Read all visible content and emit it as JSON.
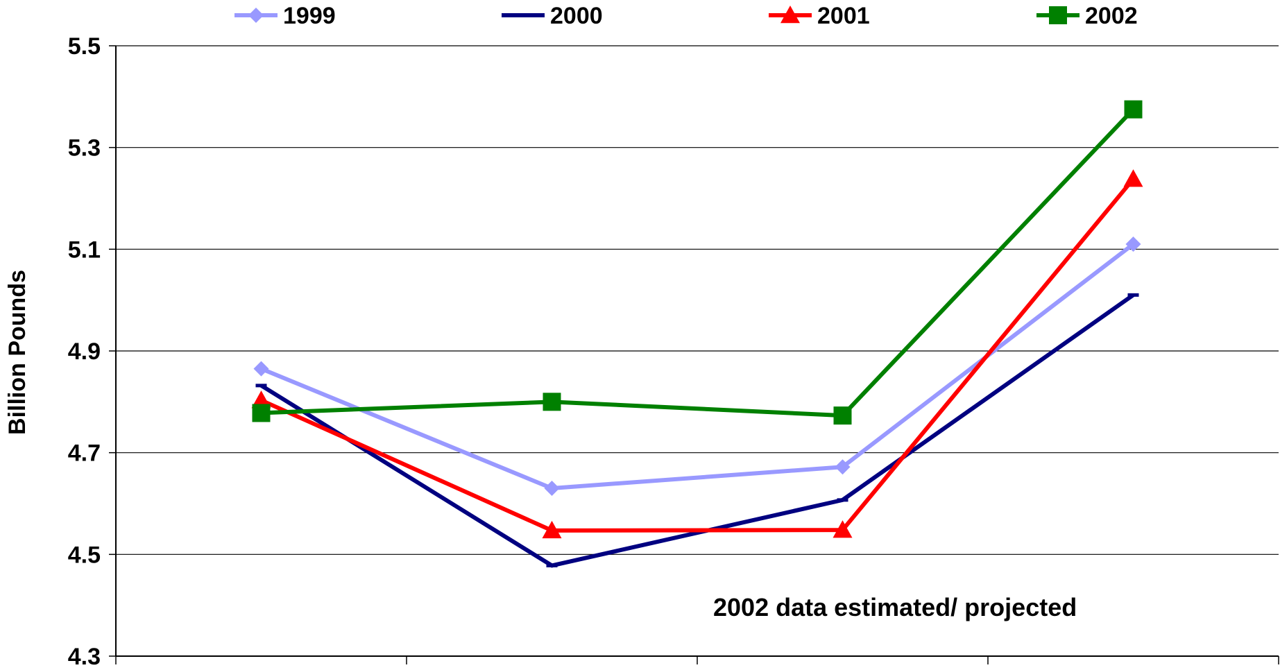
{
  "chart_data": {
    "type": "line",
    "title": "",
    "xlabel": "",
    "ylabel": "Billion Pounds",
    "categories": [
      "",
      "",
      "",
      ""
    ],
    "ylim": [
      4.3,
      5.5
    ],
    "yticks": [
      "4.3",
      "4.5",
      "4.7",
      "4.9",
      "5.1",
      "5.3",
      "5.5"
    ],
    "grid": true,
    "legend_position": "top",
    "annotation": "2002 data estimated/ projected",
    "series": [
      {
        "name": "1999",
        "values": [
          4.865,
          4.63,
          4.672,
          5.11
        ],
        "color": "#9999ff",
        "marker": "diamond"
      },
      {
        "name": "2000",
        "values": [
          4.832,
          4.478,
          4.607,
          5.01
        ],
        "color": "#000080",
        "marker": "dash"
      },
      {
        "name": "2001",
        "values": [
          4.803,
          4.547,
          4.548,
          5.238
        ],
        "color": "#ff0000",
        "marker": "triangle"
      },
      {
        "name": "2002",
        "values": [
          4.778,
          4.8,
          4.773,
          5.375
        ],
        "color": "#008000",
        "marker": "square"
      }
    ]
  }
}
